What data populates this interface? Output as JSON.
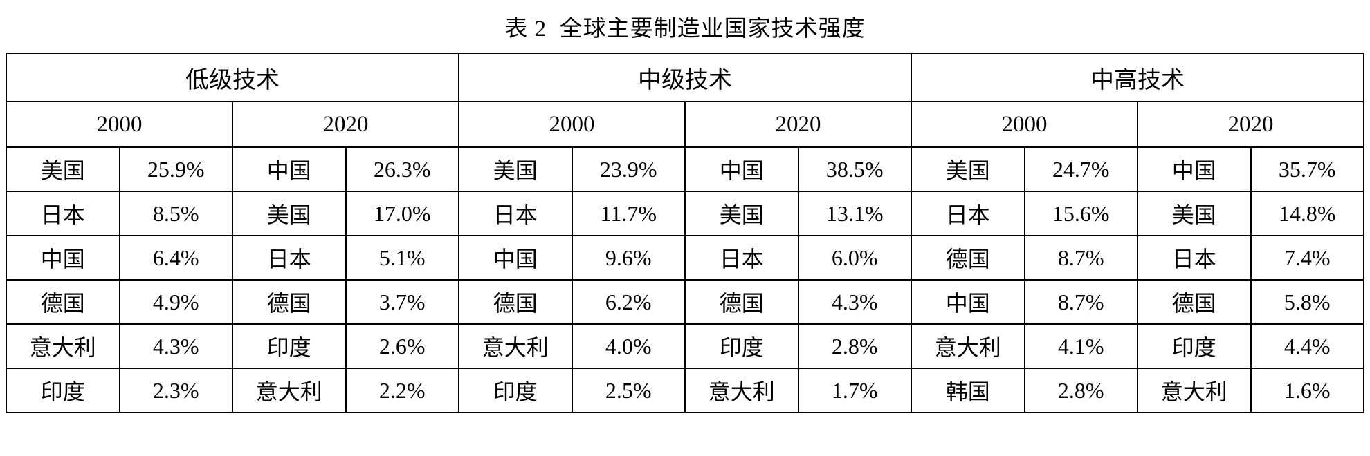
{
  "title": "表 2  全球主要制造业国家技术强度",
  "chart_data": {
    "type": "table",
    "title": "表 2 全球主要制造业国家技术强度",
    "layout": {
      "background": "#ffffff",
      "border_color": "#000000",
      "columns_per_group": 2,
      "rows": 6
    },
    "groups": [
      {
        "label": "低级技术",
        "years": [
          {
            "label": "2000",
            "rows": [
              {
                "country": "美国",
                "value": "25.9%"
              },
              {
                "country": "日本",
                "value": "8.5%"
              },
              {
                "country": "中国",
                "value": "6.4%"
              },
              {
                "country": "德国",
                "value": "4.9%"
              },
              {
                "country": "意大利",
                "value": "4.3%"
              },
              {
                "country": "印度",
                "value": "2.3%"
              }
            ]
          },
          {
            "label": "2020",
            "rows": [
              {
                "country": "中国",
                "value": "26.3%"
              },
              {
                "country": "美国",
                "value": "17.0%"
              },
              {
                "country": "日本",
                "value": "5.1%"
              },
              {
                "country": "德国",
                "value": "3.7%"
              },
              {
                "country": "印度",
                "value": "2.6%"
              },
              {
                "country": "意大利",
                "value": "2.2%"
              }
            ]
          }
        ]
      },
      {
        "label": "中级技术",
        "years": [
          {
            "label": "2000",
            "rows": [
              {
                "country": "美国",
                "value": "23.9%"
              },
              {
                "country": "日本",
                "value": "11.7%"
              },
              {
                "country": "中国",
                "value": "9.6%"
              },
              {
                "country": "德国",
                "value": "6.2%"
              },
              {
                "country": "意大利",
                "value": "4.0%"
              },
              {
                "country": "印度",
                "value": "2.5%"
              }
            ]
          },
          {
            "label": "2020",
            "rows": [
              {
                "country": "中国",
                "value": "38.5%"
              },
              {
                "country": "美国",
                "value": "13.1%"
              },
              {
                "country": "日本",
                "value": "6.0%"
              },
              {
                "country": "德国",
                "value": "4.3%"
              },
              {
                "country": "印度",
                "value": "2.8%"
              },
              {
                "country": "意大利",
                "value": "1.7%"
              }
            ]
          }
        ]
      },
      {
        "label": "中高技术",
        "years": [
          {
            "label": "2000",
            "rows": [
              {
                "country": "美国",
                "value": "24.7%"
              },
              {
                "country": "日本",
                "value": "15.6%"
              },
              {
                "country": "德国",
                "value": "8.7%"
              },
              {
                "country": "中国",
                "value": "8.7%"
              },
              {
                "country": "意大利",
                "value": "4.1%"
              },
              {
                "country": "韩国",
                "value": "2.8%"
              }
            ]
          },
          {
            "label": "2020",
            "rows": [
              {
                "country": "中国",
                "value": "35.7%"
              },
              {
                "country": "美国",
                "value": "14.8%"
              },
              {
                "country": "日本",
                "value": "7.4%"
              },
              {
                "country": "德国",
                "value": "5.8%"
              },
              {
                "country": "印度",
                "value": "4.4%"
              },
              {
                "country": "意大利",
                "value": "1.6%"
              }
            ]
          }
        ]
      }
    ]
  }
}
